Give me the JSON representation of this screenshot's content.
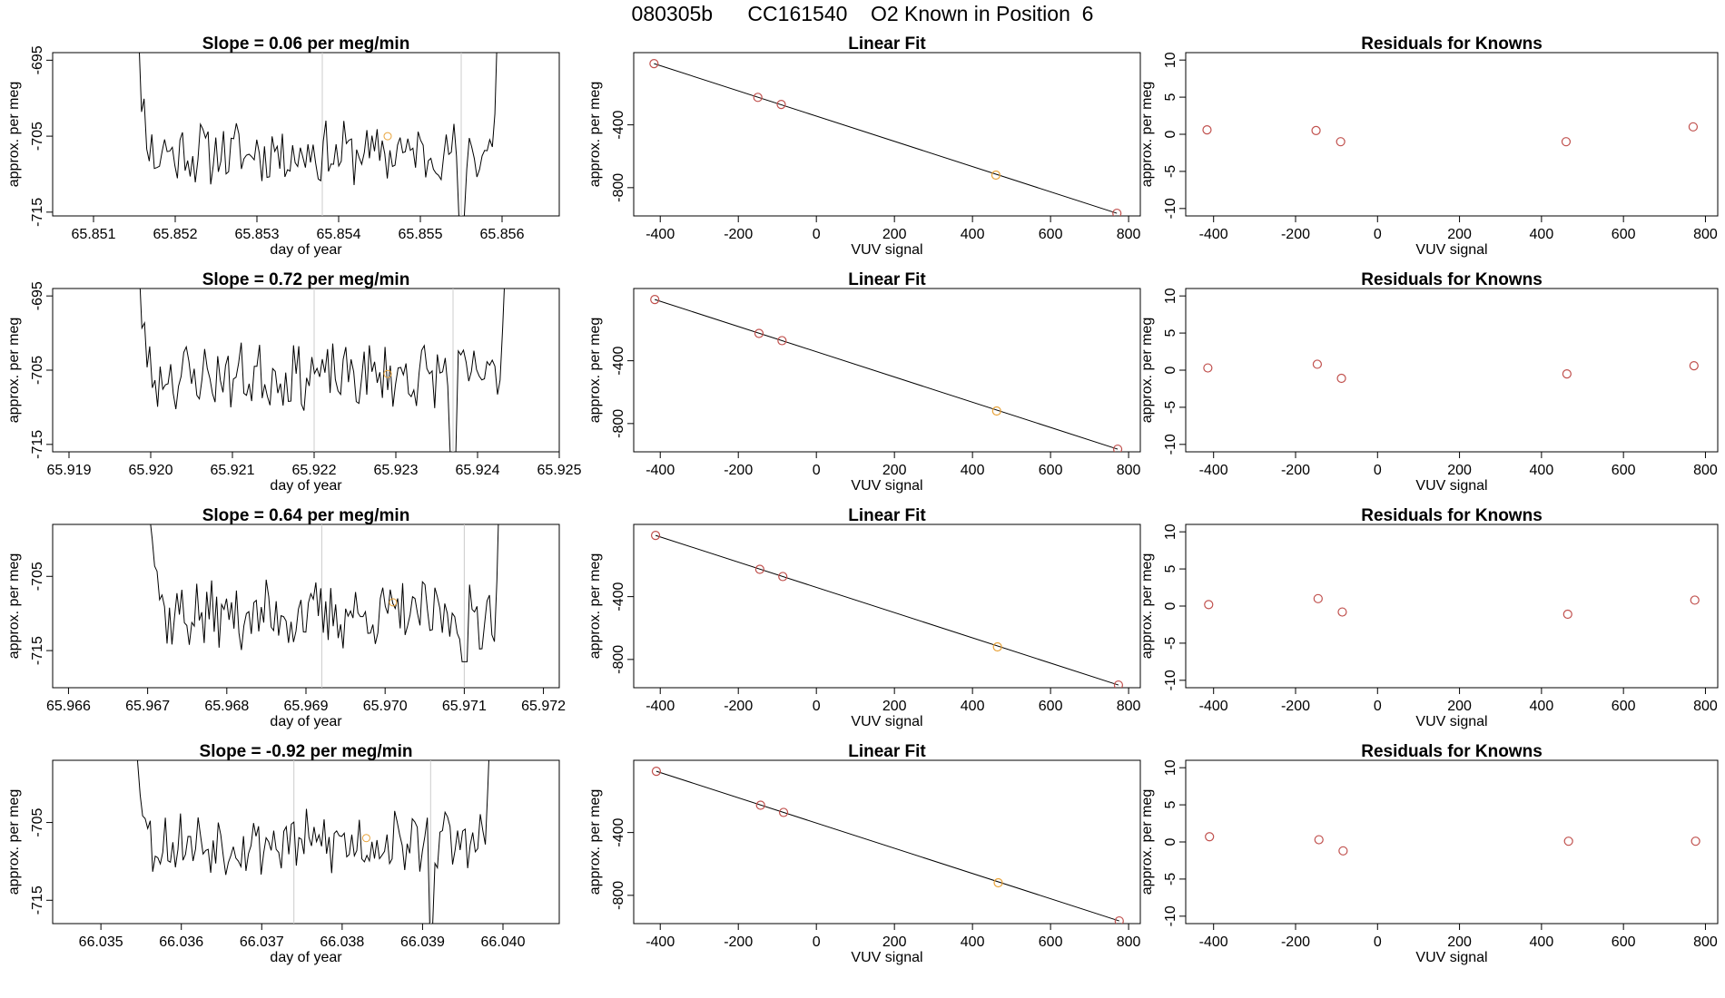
{
  "header": {
    "title": "080305b      CC161540    O2 Known in Position  6"
  },
  "colors": {
    "line": "#000000",
    "known_marker": "#c0504d",
    "sample_marker": "#e8a33a",
    "vline": "#cccccc"
  },
  "chart_data": [
    {
      "type": "line",
      "kind": "timeseries",
      "row": 0,
      "title": "Slope =  0.06  per meg/min",
      "xlabel": "day of year",
      "ylabel": "approx. per meg",
      "xlim": [
        65.8505,
        65.8567
      ],
      "ylim": [
        -715.5,
        -694
      ],
      "xticks": [
        "65.851",
        "65.852",
        "65.853",
        "65.854",
        "65.855",
        "65.856"
      ],
      "yticks": [
        "-695",
        "-705",
        "-715"
      ],
      "data_start": 65.8514,
      "data_end": 65.8561,
      "vlines": [
        65.8538,
        65.8555
      ],
      "dip_at": 65.8555,
      "dip_value": -716,
      "base": -707.2,
      "amplitude": 1.6,
      "seed": 11,
      "sample_point": [
        65.8546,
        -705
      ]
    },
    {
      "type": "line",
      "kind": "timeseries",
      "row": 1,
      "title": "Slope =  0.72  per meg/min",
      "xlabel": "day of year",
      "ylabel": "approx. per meg",
      "xlim": [
        65.9188,
        65.925
      ],
      "ylim": [
        -716,
        -694
      ],
      "xticks": [
        "65.919",
        "65.920",
        "65.921",
        "65.922",
        "65.923",
        "65.924",
        "65.925"
      ],
      "yticks": [
        "-695",
        "-705",
        "-715"
      ],
      "data_start": 65.9197,
      "data_end": 65.9245,
      "vlines": [
        65.922,
        65.9237
      ],
      "dip_at": 65.9237,
      "dip_value": -717,
      "base": -705.8,
      "amplitude": 1.7,
      "seed": 23,
      "sample_point": [
        65.9229,
        -705.5
      ]
    },
    {
      "type": "line",
      "kind": "timeseries",
      "row": 2,
      "title": "Slope =  0.64  per meg/min",
      "xlabel": "day of year",
      "ylabel": "approx. per meg",
      "xlim": [
        65.9658,
        65.9722
      ],
      "ylim": [
        -720,
        -698
      ],
      "xticks": [
        "65.966",
        "65.967",
        "65.968",
        "65.969",
        "65.970",
        "65.971",
        "65.972"
      ],
      "yticks": [
        "-705",
        "-715"
      ],
      "data_start": 65.9669,
      "data_end": 65.9716,
      "vlines": [
        65.9692,
        65.971
      ],
      "dip_at": 65.971,
      "dip_value": -716.5,
      "base": -710.2,
      "amplitude": 1.8,
      "seed": 37,
      "sample_point": [
        65.9701,
        -708.5
      ]
    },
    {
      "type": "line",
      "kind": "timeseries",
      "row": 3,
      "title": "Slope =  -0.92  per meg/min",
      "xlabel": "day of year",
      "ylabel": "approx. per meg",
      "xlim": [
        66.0344,
        66.0407
      ],
      "ylim": [
        -718,
        -697
      ],
      "xticks": [
        "66.035",
        "66.036",
        "66.037",
        "66.038",
        "66.039",
        "66.040"
      ],
      "yticks": [
        "-705",
        "-715"
      ],
      "data_start": 66.0353,
      "data_end": 66.04,
      "vlines": [
        66.0374,
        66.0391
      ],
      "dip_at": 66.0391,
      "dip_value": -719,
      "base": -707.6,
      "amplitude": 1.6,
      "seed": 53,
      "sample_point": [
        66.0383,
        -707
      ]
    },
    {
      "type": "scatter",
      "kind": "fit",
      "row": 0,
      "title": "Linear Fit",
      "xlabel": "VUV signal",
      "ylabel": "approx. per meg",
      "xlim": [
        -468,
        830
      ],
      "ylim": [
        -980,
        60
      ],
      "xticks": [
        -400,
        -200,
        0,
        200,
        400,
        600,
        800
      ],
      "yticks": [
        -400,
        -800
      ],
      "points": [
        [
          -416,
          -10
        ],
        [
          -150,
          -225
        ],
        [
          -90,
          -270
        ],
        [
          460,
          -720
        ],
        [
          770,
          -963
        ]
      ],
      "sample_indices": [
        3
      ],
      "line": [
        [
          -416,
          -10
        ],
        [
          770,
          -963
        ]
      ]
    },
    {
      "type": "scatter",
      "kind": "fit",
      "row": 1,
      "title": "Linear Fit",
      "xlabel": "VUV signal",
      "ylabel": "approx. per meg",
      "xlim": [
        -468,
        830
      ],
      "ylim": [
        -980,
        60
      ],
      "xticks": [
        -400,
        -200,
        0,
        200,
        400,
        600,
        800
      ],
      "yticks": [
        -400,
        -800
      ],
      "points": [
        [
          -414,
          -10
        ],
        [
          -147,
          -226
        ],
        [
          -88,
          -272
        ],
        [
          462,
          -720
        ],
        [
          772,
          -963
        ]
      ],
      "sample_indices": [
        3
      ],
      "line": [
        [
          -414,
          -10
        ],
        [
          772,
          -963
        ]
      ]
    },
    {
      "type": "scatter",
      "kind": "fit",
      "row": 2,
      "title": "Linear Fit",
      "xlabel": "VUV signal",
      "ylabel": "approx. per meg",
      "xlim": [
        -468,
        830
      ],
      "ylim": [
        -980,
        60
      ],
      "xticks": [
        -400,
        -200,
        0,
        200,
        400,
        600,
        800
      ],
      "yticks": [
        -400,
        -800
      ],
      "points": [
        [
          -412,
          -10
        ],
        [
          -145,
          -226
        ],
        [
          -86,
          -272
        ],
        [
          464,
          -720
        ],
        [
          774,
          -963
        ]
      ],
      "sample_indices": [
        3
      ],
      "line": [
        [
          -412,
          -10
        ],
        [
          774,
          -963
        ]
      ]
    },
    {
      "type": "scatter",
      "kind": "fit",
      "row": 3,
      "title": "Linear Fit",
      "xlabel": "VUV signal",
      "ylabel": "approx. per meg",
      "xlim": [
        -468,
        830
      ],
      "ylim": [
        -980,
        60
      ],
      "xticks": [
        -400,
        -200,
        0,
        200,
        400,
        600,
        800
      ],
      "yticks": [
        -400,
        -800
      ],
      "points": [
        [
          -410,
          -10
        ],
        [
          -143,
          -226
        ],
        [
          -84,
          -272
        ],
        [
          466,
          -720
        ],
        [
          776,
          -963
        ]
      ],
      "sample_indices": [
        3
      ],
      "line": [
        [
          -410,
          -10
        ],
        [
          776,
          -963
        ]
      ]
    },
    {
      "type": "scatter",
      "kind": "residual",
      "row": 0,
      "title": "Residuals for Knowns",
      "xlabel": "VUV signal",
      "ylabel": "approx. per meg",
      "xlim": [
        -468,
        830
      ],
      "ylim": [
        -11,
        11
      ],
      "xticks": [
        -400,
        -200,
        0,
        200,
        400,
        600,
        800
      ],
      "yticks": [
        10,
        5,
        0,
        -5,
        -10
      ],
      "points": [
        [
          -416,
          0.6
        ],
        [
          -150,
          0.5
        ],
        [
          -90,
          -1.0
        ],
        [
          460,
          -1.0
        ],
        [
          770,
          1.0
        ]
      ]
    },
    {
      "type": "scatter",
      "kind": "residual",
      "row": 1,
      "title": "Residuals for Knowns",
      "xlabel": "VUV signal",
      "ylabel": "approx. per meg",
      "xlim": [
        -468,
        830
      ],
      "ylim": [
        -11,
        11
      ],
      "xticks": [
        -400,
        -200,
        0,
        200,
        400,
        600,
        800
      ],
      "yticks": [
        10,
        5,
        0,
        -5,
        -10
      ],
      "points": [
        [
          -414,
          0.3
        ],
        [
          -147,
          0.8
        ],
        [
          -88,
          -1.1
        ],
        [
          462,
          -0.5
        ],
        [
          772,
          0.6
        ]
      ]
    },
    {
      "type": "scatter",
      "kind": "residual",
      "row": 2,
      "title": "Residuals for Knowns",
      "xlabel": "VUV signal",
      "ylabel": "approx. per meg",
      "xlim": [
        -468,
        830
      ],
      "ylim": [
        -11,
        11
      ],
      "xticks": [
        -400,
        -200,
        0,
        200,
        400,
        600,
        800
      ],
      "yticks": [
        10,
        5,
        0,
        -5,
        -10
      ],
      "points": [
        [
          -412,
          0.2
        ],
        [
          -145,
          1.0
        ],
        [
          -86,
          -0.8
        ],
        [
          464,
          -1.1
        ],
        [
          774,
          0.8
        ]
      ]
    },
    {
      "type": "scatter",
      "kind": "residual",
      "row": 3,
      "title": "Residuals for Knowns",
      "xlabel": "VUV signal",
      "ylabel": "approx. per meg",
      "xlim": [
        -468,
        830
      ],
      "ylim": [
        -11,
        11
      ],
      "xticks": [
        -400,
        -200,
        0,
        200,
        400,
        600,
        800
      ],
      "yticks": [
        10,
        5,
        0,
        -5,
        -10
      ],
      "points": [
        [
          -410,
          0.7
        ],
        [
          -143,
          0.3
        ],
        [
          -84,
          -1.2
        ],
        [
          466,
          0.1
        ],
        [
          776,
          0.1
        ]
      ]
    }
  ]
}
